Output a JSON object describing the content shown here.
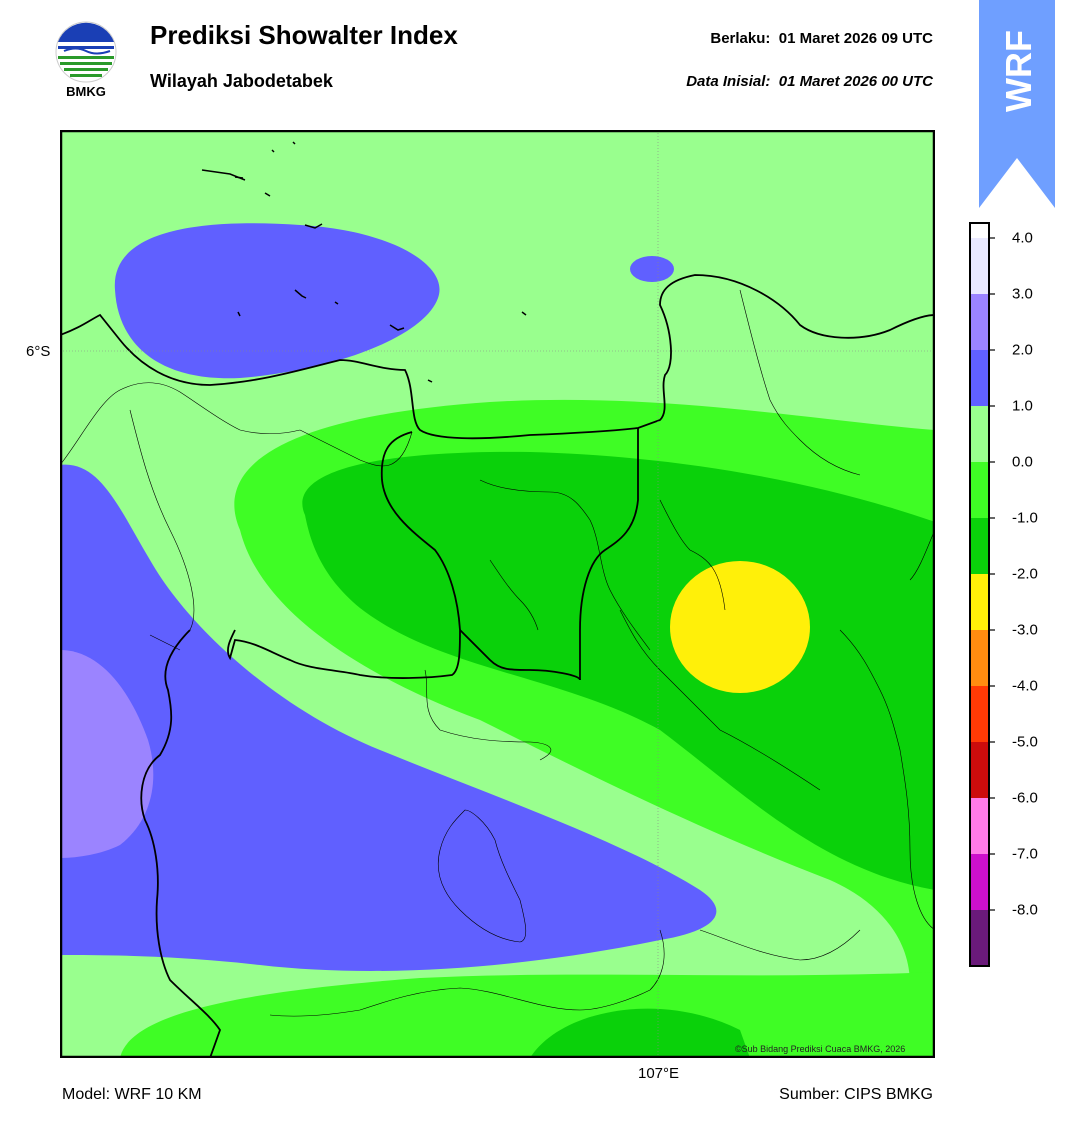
{
  "header": {
    "logo_text": "BMKG",
    "title": "Prediksi Showalter Index",
    "subtitle": "Wilayah Jabodetabek",
    "valid_label": "Berlaku:",
    "valid_value": "01 Maret 2026 09 UTC",
    "init_label": "Data Inisial:",
    "init_value": "01 Maret 2026 00 UTC",
    "badge": "WRF",
    "badge_color": "#6f9fff"
  },
  "map": {
    "lat_label": "6°S",
    "lon_label": "107°E",
    "credit": "©Sub Bidang Prediksi Cuaca BMKG, 2026",
    "background_color": "#99ff8e"
  },
  "footer": {
    "model": "Model: WRF 10 KM",
    "source": "Sumber: CIPS BMKG"
  },
  "colorbar": {
    "ticks": [
      "4.0",
      "3.0",
      "2.0",
      "1.0",
      "0.0",
      "-1.0",
      "-2.0",
      "-3.0",
      "-4.0",
      "-5.0",
      "-6.0",
      "-7.0",
      "-8.0"
    ],
    "bands": [
      {
        "color": "#ffffff"
      },
      {
        "color": "#e9e9ff"
      },
      {
        "color": "#9b84ff"
      },
      {
        "color": "#6060ff"
      },
      {
        "color": "#99ff8e"
      },
      {
        "color": "#3ffd25"
      },
      {
        "color": "#0ad10a"
      },
      {
        "color": "#fff009"
      },
      {
        "color": "#ff8c10"
      },
      {
        "color": "#ff3a05"
      },
      {
        "color": "#cc0c0c"
      },
      {
        "color": "#ff7be8"
      },
      {
        "color": "#cc10cc"
      },
      {
        "color": "#6a1a7a"
      }
    ]
  }
}
